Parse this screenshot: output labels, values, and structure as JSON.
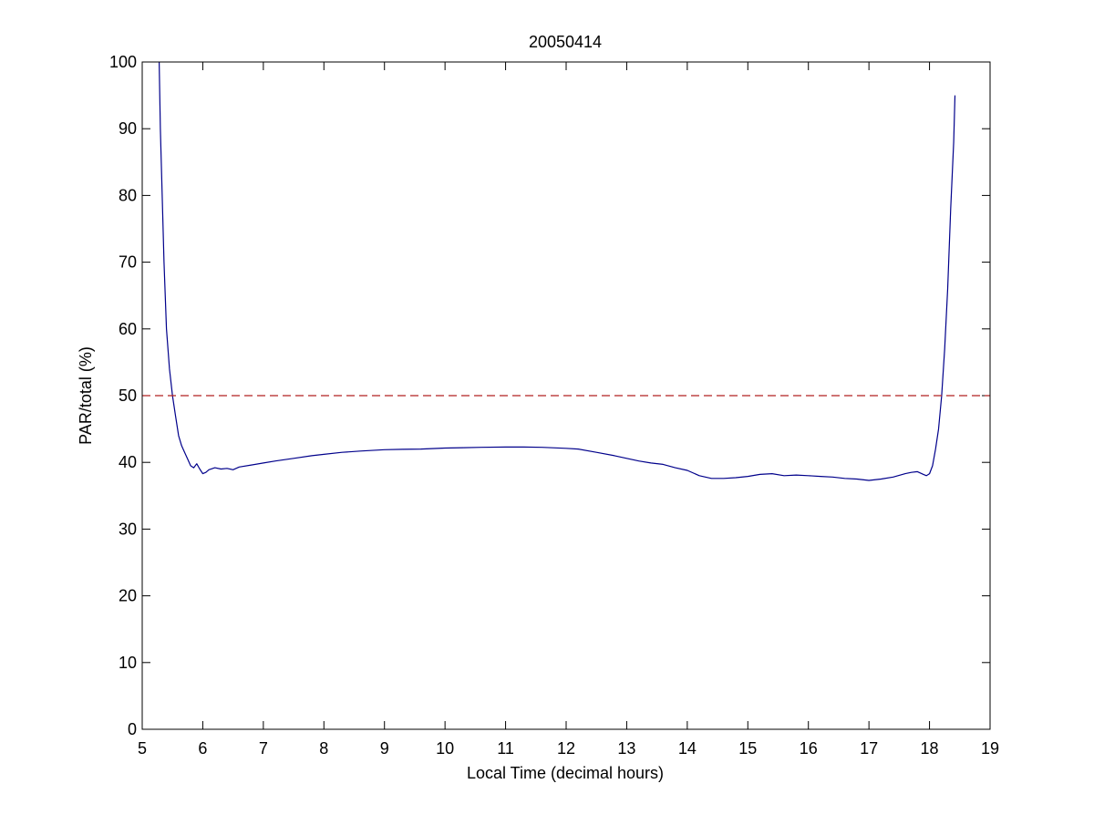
{
  "chart_data": {
    "type": "line",
    "title": "20050414",
    "xlabel": "Local Time (decimal hours)",
    "ylabel": "PAR/total (%)",
    "xlim": [
      5,
      19
    ],
    "ylim": [
      0,
      100
    ],
    "xticks": [
      "5",
      "6",
      "7",
      "8",
      "9",
      "10",
      "11",
      "12",
      "13",
      "14",
      "15",
      "16",
      "17",
      "18",
      "19"
    ],
    "yticks": [
      "0",
      "10",
      "20",
      "30",
      "40",
      "50",
      "60",
      "70",
      "80",
      "90",
      "100"
    ],
    "grid": false,
    "legend": "none",
    "series": [
      {
        "color": "#00008b",
        "style": "solid",
        "x": [
          5.28,
          5.3,
          5.33,
          5.36,
          5.4,
          5.45,
          5.5,
          5.55,
          5.6,
          5.65,
          5.7,
          5.75,
          5.8,
          5.85,
          5.9,
          5.95,
          6.0,
          6.05,
          6.1,
          6.2,
          6.3,
          6.4,
          6.5,
          6.6,
          6.8,
          7.0,
          7.2,
          7.5,
          7.8,
          8.0,
          8.3,
          8.6,
          9.0,
          9.3,
          9.6,
          10.0,
          10.3,
          10.6,
          11.0,
          11.3,
          11.6,
          12.0,
          12.2,
          12.5,
          12.8,
          13.0,
          13.2,
          13.4,
          13.6,
          13.8,
          14.0,
          14.2,
          14.4,
          14.6,
          14.8,
          15.0,
          15.2,
          15.4,
          15.6,
          15.8,
          16.0,
          16.2,
          16.4,
          16.6,
          16.8,
          17.0,
          17.2,
          17.4,
          17.6,
          17.7,
          17.8,
          17.9,
          17.95,
          18.0,
          18.05,
          18.1,
          18.15,
          18.2,
          18.25,
          18.3,
          18.35,
          18.4,
          18.42
        ],
        "values": [
          100,
          90,
          80,
          70,
          60,
          54,
          50,
          47,
          44,
          42.5,
          41.5,
          40.5,
          39.5,
          39.2,
          39.8,
          39.0,
          38.3,
          38.5,
          38.9,
          39.2,
          39.0,
          39.1,
          38.9,
          39.3,
          39.6,
          39.9,
          40.2,
          40.6,
          41.0,
          41.2,
          41.5,
          41.7,
          41.9,
          41.95,
          42.0,
          42.15,
          42.2,
          42.25,
          42.3,
          42.3,
          42.25,
          42.1,
          42.0,
          41.5,
          41.0,
          40.6,
          40.2,
          39.9,
          39.7,
          39.2,
          38.8,
          38.0,
          37.6,
          37.6,
          37.7,
          37.9,
          38.2,
          38.3,
          38.0,
          38.1,
          38.0,
          37.9,
          37.8,
          37.6,
          37.5,
          37.3,
          37.5,
          37.8,
          38.3,
          38.5,
          38.6,
          38.2,
          38.0,
          38.3,
          39.5,
          42,
          45,
          50,
          57,
          66,
          78,
          88,
          95
        ]
      },
      {
        "color": "#b22222",
        "style": "dashed",
        "x": [
          5,
          19
        ],
        "values": [
          50,
          50
        ]
      }
    ]
  }
}
